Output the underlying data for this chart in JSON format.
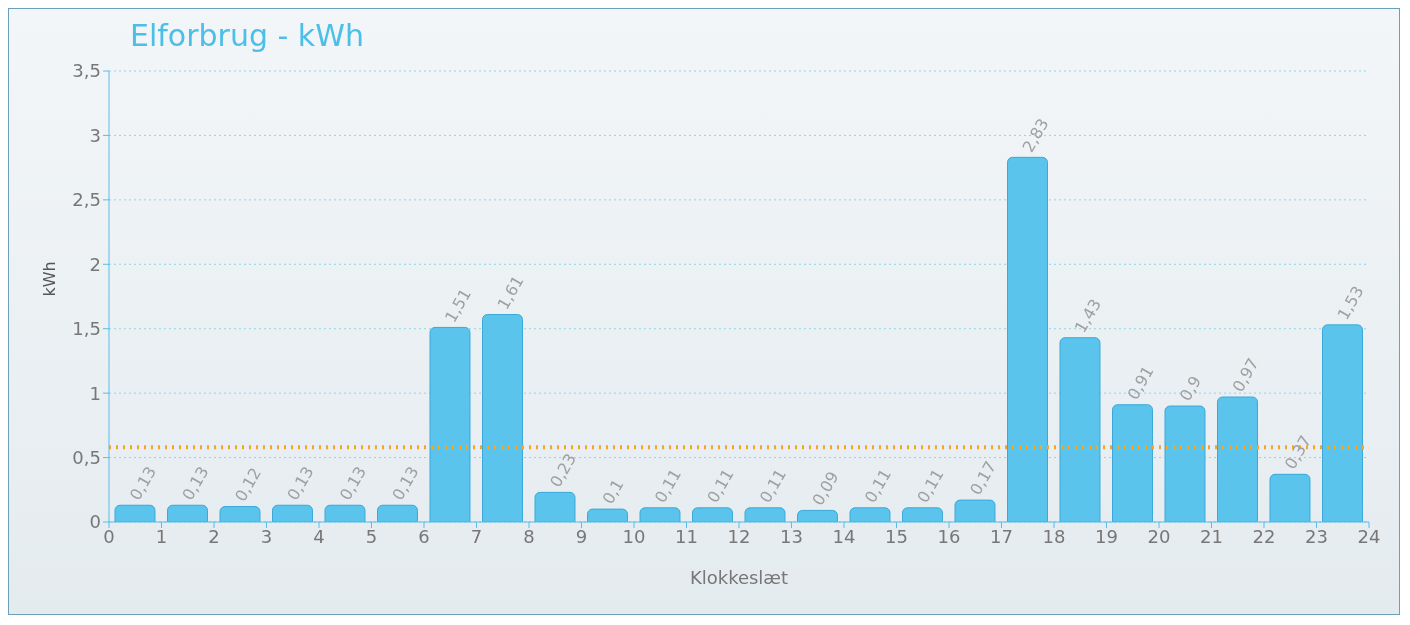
{
  "chart_data": {
    "type": "bar",
    "title": "Elforbrug - kWh",
    "xlabel": "Klokkeslæt",
    "ylabel": "kWh",
    "x": [
      0.5,
      1.5,
      2.5,
      3.5,
      4.5,
      5.5,
      6.5,
      7.5,
      8.5,
      9.5,
      10.5,
      11.5,
      12.5,
      13.5,
      14.5,
      15.5,
      16.5,
      17.5,
      18.5,
      19.5,
      20.5,
      21.5,
      22.5,
      23.5
    ],
    "values": [
      0.13,
      0.13,
      0.12,
      0.13,
      0.13,
      0.13,
      1.51,
      1.61,
      0.23,
      0.1,
      0.11,
      0.11,
      0.11,
      0.09,
      0.11,
      0.11,
      0.17,
      2.83,
      1.43,
      0.91,
      0.9,
      0.97,
      0.37,
      1.53
    ],
    "value_labels": [
      "0,13",
      "0,13",
      "0,12",
      "0,13",
      "0,13",
      "0,13",
      "1,51",
      "1,61",
      "0,23",
      "0,1",
      "0,11",
      "0,11",
      "0,11",
      "0,09",
      "0,11",
      "0,11",
      "0,17",
      "2,83",
      "1,43",
      "0,91",
      "0,9",
      "0,97",
      "0,37",
      "1,53"
    ],
    "color": "#5bc4ec",
    "xlim": [
      0,
      24
    ],
    "xticks": [
      0,
      1,
      2,
      3,
      4,
      5,
      6,
      7,
      8,
      9,
      10,
      11,
      12,
      13,
      14,
      15,
      16,
      17,
      18,
      19,
      20,
      21,
      22,
      23,
      24
    ],
    "ylim": [
      0,
      3.5
    ],
    "yticks": [
      0,
      {
        "value": 0.5,
        "label": "0,5"
      },
      1,
      {
        "value": 1.5,
        "label": "1,5"
      },
      2,
      {
        "value": 2.5,
        "label": "2,5"
      },
      3,
      {
        "value": 3.5,
        "label": "3,5"
      }
    ],
    "grid": "y",
    "ref_lines": [
      {
        "axis": "y",
        "value": 0.58,
        "color": "#f5a623",
        "line_style": "dotted"
      }
    ]
  }
}
